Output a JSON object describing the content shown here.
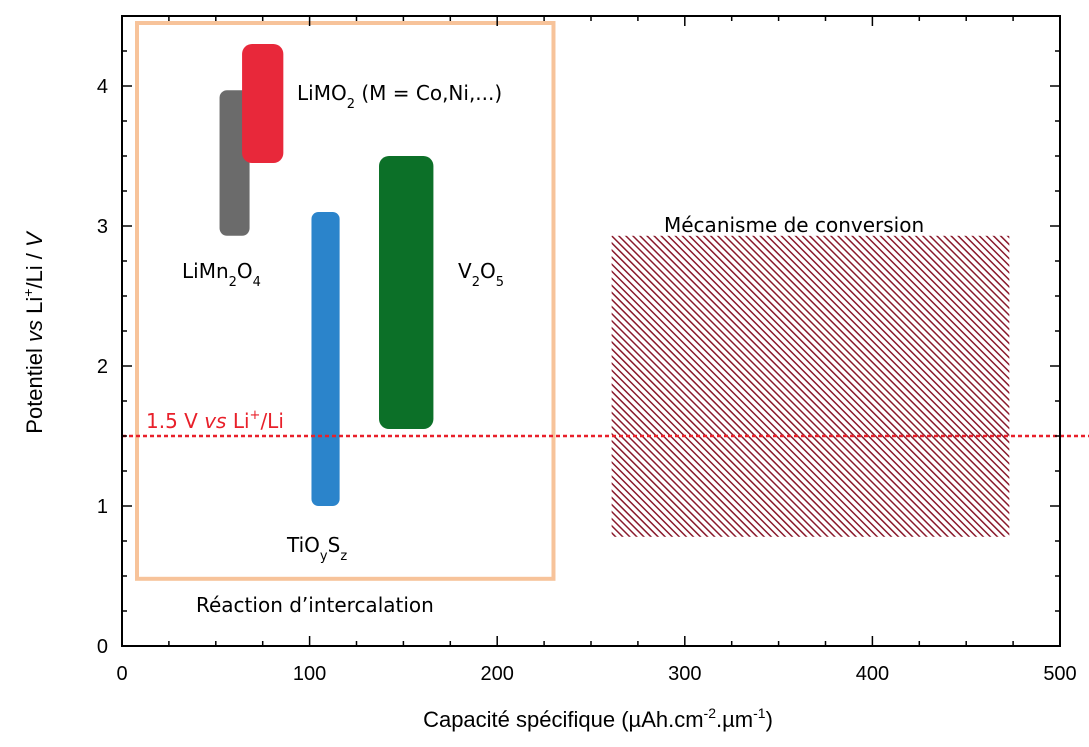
{
  "chart_data": {
    "type": "bar",
    "xlabel": "Capacité spécifique (µAh.cm-2.µm-1)",
    "ylabel": "Potentiel vs Li+/Li / V",
    "xlim": [
      0,
      500
    ],
    "ylim": [
      0,
      4.5
    ],
    "xticks": [
      0,
      100,
      200,
      300,
      400,
      500
    ],
    "yticks": [
      0,
      1,
      2,
      3,
      4
    ],
    "grid": false,
    "series": [
      {
        "name": "LiMn2O4",
        "x_range": [
          52,
          68
        ],
        "y_range": [
          2.93,
          3.97
        ],
        "color": "#6b6b6b"
      },
      {
        "name": "LiMO2 (M = Co,Ni,...)",
        "x_range": [
          64,
          86
        ],
        "y_range": [
          3.45,
          4.3
        ],
        "color": "#e8283a"
      },
      {
        "name": "TiOySz",
        "x_range": [
          101,
          116
        ],
        "y_range": [
          1.0,
          3.1
        ],
        "color": "#2b84cb"
      },
      {
        "name": "V2O5",
        "x_range": [
          137,
          166
        ],
        "y_range": [
          1.55,
          3.5
        ],
        "color": "#0c7028"
      },
      {
        "name": "Mécanisme de conversion",
        "x_range": [
          261,
          473
        ],
        "y_range": [
          0.78,
          2.93
        ],
        "color": "#8a1a2c",
        "pattern": "hatched"
      }
    ],
    "reference_line": {
      "y": 1.5,
      "label": "1.5 V vs Li+/Li",
      "color": "#e8202a"
    },
    "groups": [
      {
        "label": "Réaction d’intercalation",
        "x_range": [
          8,
          230
        ],
        "y_range": [
          0.48,
          4.45
        ],
        "color": "#f7c39a"
      }
    ]
  },
  "text": {
    "xlabel_main": "Capacité spécifique (µAh.cm",
    "xlabel_sup1": "-2",
    "xlabel_mid": ".µm",
    "xlabel_sup2": "-1",
    "xlabel_end": ")",
    "ylabel_a": "Potentiel ",
    "ylabel_vs": "vs",
    "ylabel_b": " Li",
    "ylabel_sup": "+",
    "ylabel_c": "/Li / ",
    "ylabel_v": "V",
    "limn_a": "LiMn",
    "limn_s1": "2",
    "limn_b": "O",
    "limn_s2": "4",
    "limo_a": "LiMO",
    "limo_s": "2",
    "limo_b": " (M = Co,Ni,...)",
    "tio_a": "TiO",
    "tio_s1": "y",
    "tio_b": "S",
    "tio_s2": "z",
    "v_a": "V",
    "v_s1": "2",
    "v_b": "O",
    "v_s2": "5",
    "ref_a": "1.5 V ",
    "ref_vs": "vs",
    "ref_b": " Li",
    "ref_sup": "+",
    "ref_c": "/Li",
    "conversion_label": "Mécanisme de conversion",
    "intercalation_label": "Réaction d’intercalation"
  }
}
